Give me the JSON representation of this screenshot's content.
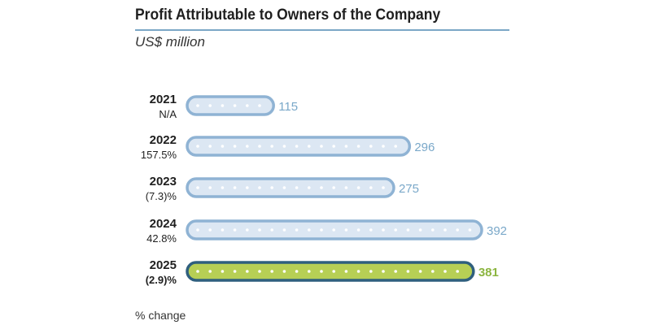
{
  "title": "Profit Attributable to Owners of the Company",
  "subtitle": "US$ million",
  "footnote": "% change",
  "chart_data": {
    "type": "bar",
    "orientation": "horizontal",
    "categories": [
      "2021",
      "2022",
      "2023",
      "2024",
      "2025"
    ],
    "values": [
      115,
      296,
      275,
      392,
      381
    ],
    "value_labels": [
      "115",
      "296",
      "275",
      "392",
      "381"
    ],
    "pct_change": [
      "N/A",
      "157.5%",
      "(7.3)%",
      "42.8%",
      "(2.9)%"
    ],
    "highlight_index": 4,
    "xlim": [
      0,
      392
    ],
    "colors": {
      "bar_border": "#8fb3d4",
      "bar_fill": "#dce7f3",
      "label": "#7aa8c9",
      "highlight_border": "#2f5f7e",
      "highlight_fill": "#b7cf55",
      "highlight_label": "#8cb540"
    }
  }
}
